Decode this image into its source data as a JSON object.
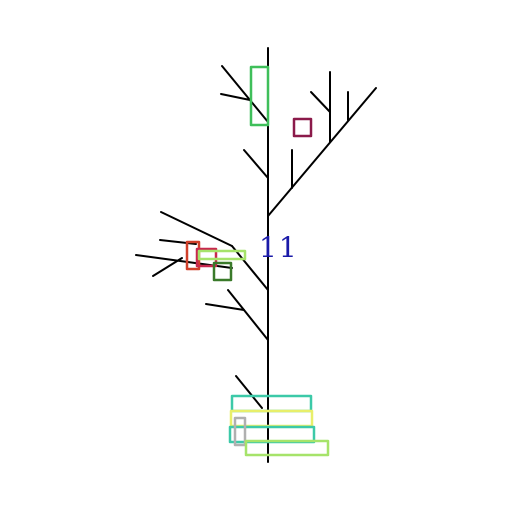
{
  "diagram": {
    "label": "11",
    "label_color": "#1a1aa8",
    "branch_color": "#000000",
    "box_colors": {
      "green": "#3fbf5a",
      "maroon": "#8b1a4a",
      "red": "#d0402a",
      "crimson": "#c8284e",
      "dark_green": "#3a7a2a",
      "lime": "#a6e36a",
      "teal": "#3cc9a8",
      "yellow": "#e8ef6a",
      "gray": "#b0b0b0"
    }
  }
}
